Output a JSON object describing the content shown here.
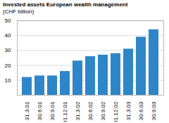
{
  "chart_data": {
    "type": "bar",
    "title": "Invested assets European wealth management",
    "subtitle": "(CHF billion)",
    "categories": [
      "31.3.01",
      "30.6.01",
      "30.9.01",
      "31.12.01",
      "31.3.02",
      "30.6.02",
      "30.9.02",
      "31.12.02",
      "31.3.03",
      "30.6.03",
      "30.9.03"
    ],
    "values": [
      12.0,
      13.0,
      13.0,
      16.0,
      23.0,
      26.0,
      27.0,
      28.0,
      31.0,
      39.0,
      44.0
    ],
    "color": "#2e86c8",
    "ylim": [
      0,
      50
    ],
    "yticks": [
      10,
      20,
      30,
      40,
      50
    ],
    "grid": true
  }
}
